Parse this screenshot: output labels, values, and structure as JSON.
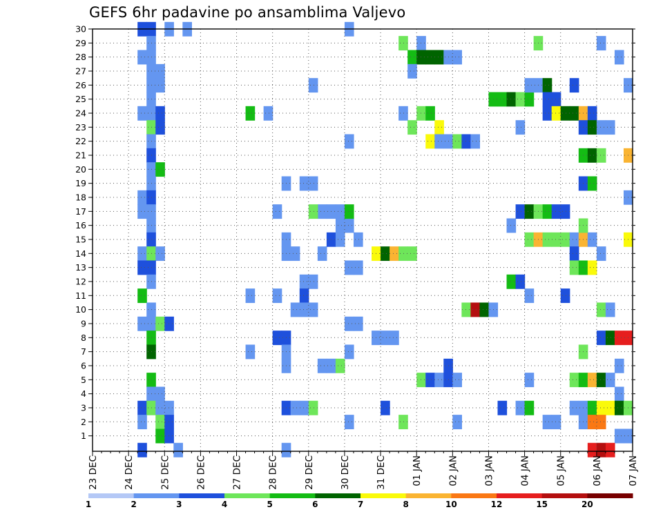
{
  "chart_data": {
    "type": "heatmap",
    "title": "GEFS 6hr padavine po ansamblima Valjevo",
    "x_tick_labels": [
      "23 DEC",
      "24 DEC",
      "25 DEC",
      "26 DEC",
      "27 DEC",
      "28 DEC",
      "29 DEC",
      "30 DEC",
      "31 DEC",
      "01 JAN",
      "02 JAN",
      "03 JAN",
      "04 JAN",
      "05 JAN",
      "06 JAN",
      "07 JAN"
    ],
    "y_tick_labels": [
      "1",
      "2",
      "3",
      "4",
      "5",
      "6",
      "7",
      "8",
      "9",
      "10",
      "11",
      "12",
      "13",
      "14",
      "15",
      "16",
      "17",
      "18",
      "19",
      "20",
      "21",
      "22",
      "23",
      "24",
      "25",
      "26",
      "27",
      "28",
      "29",
      "30"
    ],
    "ylim": [
      0,
      30
    ],
    "x_range_days": [
      0,
      15
    ],
    "time_step_days": 0.25,
    "grid": true,
    "legend_labels": [
      "1",
      "2",
      "3",
      "4",
      "5",
      "6",
      "7",
      "8",
      "10",
      "12",
      "15",
      "20"
    ],
    "legend_colors": [
      "#b4c8f6",
      "#6496f0",
      "#1e50dc",
      "#6ee65a",
      "#14bc14",
      "#006400",
      "#fafa0a",
      "#fab432",
      "#fa7814",
      "#e61e1e",
      "#b40f0f",
      "#780000"
    ],
    "cells": [
      [
        1.25,
        30,
        2
      ],
      [
        1.5,
        30,
        2
      ],
      [
        1.5,
        29,
        1
      ],
      [
        1.25,
        28,
        1
      ],
      [
        1.5,
        28,
        1
      ],
      [
        1.5,
        27,
        1
      ],
      [
        1.75,
        27,
        1
      ],
      [
        1.5,
        26,
        1
      ],
      [
        1.75,
        26,
        1
      ],
      [
        1.5,
        25,
        1
      ],
      [
        1.25,
        24,
        1
      ],
      [
        1.5,
        24,
        1
      ],
      [
        1.75,
        24,
        2
      ],
      [
        1.5,
        23,
        3
      ],
      [
        1.75,
        23,
        2
      ],
      [
        1.5,
        22,
        1
      ],
      [
        1.5,
        21,
        2
      ],
      [
        1.5,
        20,
        1
      ],
      [
        1.75,
        20,
        4
      ],
      [
        1.5,
        19,
        1
      ],
      [
        1.25,
        18,
        1
      ],
      [
        1.5,
        18,
        2
      ],
      [
        1.25,
        17,
        1
      ],
      [
        1.5,
        17,
        1
      ],
      [
        1.5,
        16,
        1
      ],
      [
        1.5,
        15,
        2
      ],
      [
        1.25,
        14,
        1
      ],
      [
        1.5,
        14,
        3
      ],
      [
        1.75,
        14,
        1
      ],
      [
        1.25,
        13,
        2
      ],
      [
        1.5,
        13,
        2
      ],
      [
        1.5,
        12,
        1
      ],
      [
        1.25,
        11,
        4
      ],
      [
        1.5,
        10,
        1
      ],
      [
        1.25,
        9,
        1
      ],
      [
        1.5,
        9,
        1
      ],
      [
        1.75,
        9,
        3
      ],
      [
        2.0,
        9,
        2
      ],
      [
        1.5,
        8,
        4
      ],
      [
        1.5,
        7,
        5
      ],
      [
        1.5,
        5,
        4
      ],
      [
        1.5,
        4,
        1
      ],
      [
        1.75,
        4,
        1
      ],
      [
        1.25,
        3,
        2
      ],
      [
        1.5,
        3,
        3
      ],
      [
        1.75,
        3,
        1
      ],
      [
        2.0,
        3,
        1
      ],
      [
        1.25,
        2,
        1
      ],
      [
        1.75,
        2,
        3
      ],
      [
        2.0,
        2,
        2
      ],
      [
        1.75,
        1,
        4
      ],
      [
        2.0,
        1,
        2
      ],
      [
        1.25,
        0,
        2
      ],
      [
        2.0,
        30,
        1
      ],
      [
        2.5,
        30,
        1
      ],
      [
        2.25,
        0,
        1
      ],
      [
        4.25,
        24,
        4
      ],
      [
        4.75,
        24,
        1
      ],
      [
        4.25,
        11,
        1
      ],
      [
        4.25,
        7,
        1
      ],
      [
        5.0,
        17,
        1
      ],
      [
        5.0,
        11,
        1
      ],
      [
        5.0,
        8,
        2
      ],
      [
        5.25,
        8,
        2
      ],
      [
        5.25,
        7,
        1
      ],
      [
        5.25,
        6,
        1
      ],
      [
        5.25,
        3,
        2
      ],
      [
        5.25,
        0,
        1
      ],
      [
        5.25,
        15,
        1
      ],
      [
        5.25,
        14,
        1
      ],
      [
        5.5,
        14,
        1
      ],
      [
        5.25,
        19,
        1
      ],
      [
        5.75,
        19,
        1
      ],
      [
        6.0,
        19,
        1
      ],
      [
        5.75,
        12,
        1
      ],
      [
        6.0,
        12,
        1
      ],
      [
        5.75,
        11,
        2
      ],
      [
        5.5,
        10,
        1
      ],
      [
        5.75,
        10,
        1
      ],
      [
        6.0,
        10,
        1
      ],
      [
        5.5,
        3,
        1
      ],
      [
        5.75,
        3,
        1
      ],
      [
        6.0,
        3,
        3
      ],
      [
        6.25,
        14,
        1
      ],
      [
        6.5,
        15,
        2
      ],
      [
        6.75,
        15,
        1
      ],
      [
        6.75,
        16,
        1
      ],
      [
        7.0,
        16,
        1
      ],
      [
        6.25,
        17,
        1
      ],
      [
        6.5,
        17,
        1
      ],
      [
        6.0,
        17,
        3
      ],
      [
        6.25,
        6,
        1
      ],
      [
        6.5,
        6,
        1
      ],
      [
        6.75,
        6,
        3
      ],
      [
        6.75,
        17,
        1
      ],
      [
        7.0,
        17,
        4
      ],
      [
        7.0,
        30,
        1
      ],
      [
        7.25,
        15,
        1
      ],
      [
        7.0,
        13,
        1
      ],
      [
        7.25,
        13,
        1
      ],
      [
        7.0,
        9,
        1
      ],
      [
        7.25,
        9,
        1
      ],
      [
        7.0,
        7,
        1
      ],
      [
        7.0,
        2,
        1
      ],
      [
        6.0,
        26,
        1
      ],
      [
        7.0,
        22,
        1
      ],
      [
        7.75,
        14,
        6
      ],
      [
        8.0,
        14,
        5
      ],
      [
        8.25,
        14,
        7
      ],
      [
        8.5,
        14,
        3
      ],
      [
        8.75,
        14,
        3
      ],
      [
        7.75,
        8,
        1
      ],
      [
        8.0,
        8,
        1
      ],
      [
        8.25,
        8,
        1
      ],
      [
        8.0,
        3,
        2
      ],
      [
        8.5,
        2,
        3
      ],
      [
        8.5,
        29,
        3
      ],
      [
        9.0,
        29,
        1
      ],
      [
        8.5,
        24,
        1
      ],
      [
        9.0,
        24,
        3
      ],
      [
        9.25,
        24,
        4
      ],
      [
        8.75,
        23,
        3
      ],
      [
        9.5,
        23,
        6
      ],
      [
        9.25,
        22,
        6
      ],
      [
        9.5,
        22,
        1
      ],
      [
        9.75,
        22,
        1
      ],
      [
        10.0,
        22,
        3
      ],
      [
        10.25,
        22,
        2
      ],
      [
        10.5,
        22,
        1
      ],
      [
        8.75,
        28,
        4
      ],
      [
        9.0,
        28,
        5
      ],
      [
        9.25,
        28,
        5
      ],
      [
        9.5,
        28,
        5
      ],
      [
        9.75,
        28,
        1
      ],
      [
        10.0,
        28,
        1
      ],
      [
        8.75,
        27,
        1
      ],
      [
        9.0,
        5,
        3
      ],
      [
        9.25,
        5,
        2
      ],
      [
        9.5,
        5,
        1
      ],
      [
        9.75,
        5,
        2
      ],
      [
        10.0,
        5,
        1
      ],
      [
        9.75,
        6,
        2
      ],
      [
        10.0,
        2,
        1
      ],
      [
        10.25,
        10,
        3
      ],
      [
        10.5,
        10,
        10
      ],
      [
        10.75,
        10,
        5
      ],
      [
        11.0,
        10,
        1
      ],
      [
        11.0,
        25,
        4
      ],
      [
        11.25,
        25,
        4
      ],
      [
        11.5,
        25,
        5
      ],
      [
        11.75,
        25,
        3
      ],
      [
        12.0,
        25,
        4
      ],
      [
        11.5,
        12,
        4
      ],
      [
        11.75,
        12,
        2
      ],
      [
        11.5,
        16,
        1
      ],
      [
        11.25,
        3,
        2
      ],
      [
        11.75,
        3,
        1
      ],
      [
        12.0,
        3,
        4
      ],
      [
        11.75,
        23,
        1
      ],
      [
        11.75,
        17,
        2
      ],
      [
        12.0,
        17,
        5
      ],
      [
        12.25,
        17,
        3
      ],
      [
        12.5,
        17,
        4
      ],
      [
        12.75,
        17,
        2
      ],
      [
        13.0,
        17,
        2
      ],
      [
        12.0,
        15,
        3
      ],
      [
        12.25,
        15,
        7
      ],
      [
        12.5,
        15,
        3
      ],
      [
        12.75,
        15,
        3
      ],
      [
        13.0,
        15,
        3
      ],
      [
        13.25,
        15,
        1
      ],
      [
        13.5,
        15,
        7
      ],
      [
        13.75,
        15,
        1
      ],
      [
        12.0,
        26,
        1
      ],
      [
        12.25,
        26,
        1
      ],
      [
        12.5,
        26,
        5
      ],
      [
        12.5,
        25,
        2
      ],
      [
        12.75,
        25,
        2
      ],
      [
        12.5,
        24,
        2
      ],
      [
        12.75,
        24,
        6
      ],
      [
        13.0,
        24,
        5
      ],
      [
        13.25,
        24,
        5
      ],
      [
        13.5,
        24,
        7
      ],
      [
        13.75,
        24,
        2
      ],
      [
        13.5,
        23,
        2
      ],
      [
        13.75,
        23,
        5
      ],
      [
        14.0,
        23,
        1
      ],
      [
        13.25,
        26,
        2
      ],
      [
        12.25,
        29,
        3
      ],
      [
        14.0,
        29,
        1
      ],
      [
        12.0,
        11,
        1
      ],
      [
        13.0,
        11,
        2
      ],
      [
        13.25,
        14,
        2
      ],
      [
        13.25,
        13,
        3
      ],
      [
        13.5,
        13,
        4
      ],
      [
        13.75,
        13,
        6
      ],
      [
        14.0,
        14,
        1
      ],
      [
        13.5,
        16,
        3
      ],
      [
        13.5,
        19,
        2
      ],
      [
        13.75,
        19,
        4
      ],
      [
        13.5,
        21,
        4
      ],
      [
        13.75,
        21,
        5
      ],
      [
        14.0,
        21,
        3
      ],
      [
        14.75,
        21,
        7
      ],
      [
        14.75,
        15,
        6
      ],
      [
        14.0,
        10,
        3
      ],
      [
        14.25,
        10,
        1
      ],
      [
        14.0,
        8,
        2
      ],
      [
        14.25,
        8,
        5
      ],
      [
        14.5,
        8,
        9
      ],
      [
        14.75,
        8,
        9
      ],
      [
        13.25,
        5,
        3
      ],
      [
        13.5,
        5,
        4
      ],
      [
        13.75,
        5,
        7
      ],
      [
        14.0,
        5,
        5
      ],
      [
        14.25,
        5,
        1
      ],
      [
        13.5,
        7,
        3
      ],
      [
        14.5,
        6,
        1
      ],
      [
        14.5,
        4,
        1
      ],
      [
        13.25,
        3,
        1
      ],
      [
        13.5,
        3,
        1
      ],
      [
        13.75,
        3,
        4
      ],
      [
        14.0,
        3,
        6
      ],
      [
        14.25,
        3,
        6
      ],
      [
        14.5,
        3,
        5
      ],
      [
        14.75,
        3,
        3
      ],
      [
        12.5,
        2,
        1
      ],
      [
        12.75,
        2,
        1
      ],
      [
        13.5,
        2,
        1
      ],
      [
        13.75,
        2,
        8
      ],
      [
        14.0,
        2,
        8
      ],
      [
        14.5,
        1,
        1
      ],
      [
        14.75,
        1,
        1
      ],
      [
        13.75,
        0,
        9
      ],
      [
        14.0,
        0,
        10
      ],
      [
        14.25,
        0,
        9
      ],
      [
        14.75,
        26,
        1
      ],
      [
        14.75,
        18,
        1
      ],
      [
        14.5,
        28,
        1
      ],
      [
        14.25,
        23,
        1
      ],
      [
        12.0,
        5,
        1
      ]
    ]
  }
}
